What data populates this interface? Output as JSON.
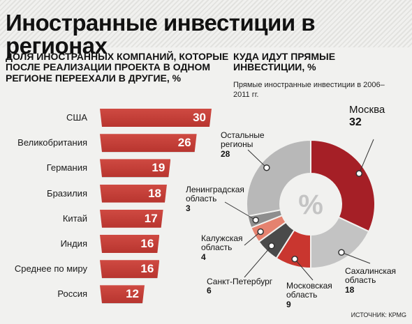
{
  "title": "Иностранные инвестиции в регионах",
  "source": "Источник: КРМG",
  "chart_data": [
    {
      "type": "bar",
      "title": "ДОЛЯ ИНОСТРАННЫХ КОМПАНИЙ, КОТОРЫЕ ПОСЛЕ РЕАЛИЗАЦИИ ПРОЕКТА В ОДНОМ РЕГИОНЕ ПЕРЕЕХАЛИ В ДРУГИЕ, %",
      "categories": [
        "США",
        "Великобритания",
        "Германия",
        "Бразилия",
        "Китай",
        "Индия",
        "Среднее по миру",
        "Россия"
      ],
      "values": [
        30,
        26,
        19,
        18,
        17,
        16,
        16,
        12
      ],
      "xlim": [
        0,
        30
      ],
      "color": "#c0392f"
    },
    {
      "type": "pie",
      "title": "КУДА ИДУТ ПРЯМЫЕ ИНВЕСТИЦИИ, %",
      "subtitle": "Прямые иностранные инвестиции в 2006–2011 гг.",
      "center_label": "%",
      "slices": [
        {
          "label": "Москва",
          "value": 32,
          "color": "#a51f26"
        },
        {
          "label": "Сахалинская область",
          "value": 18,
          "color": "#c3c3c3"
        },
        {
          "label": "Московская область",
          "value": 9,
          "color": "#c9362f"
        },
        {
          "label": "Санкт-Петербург",
          "value": 6,
          "color": "#4a4a4a"
        },
        {
          "label": "Калужская область",
          "value": 4,
          "color": "#e5826f"
        },
        {
          "label": "Ленинградская область",
          "value": 3,
          "color": "#8e8e8e"
        },
        {
          "label": "Остальные регионы",
          "value": 28,
          "color": "#b8b8b8"
        }
      ]
    }
  ]
}
